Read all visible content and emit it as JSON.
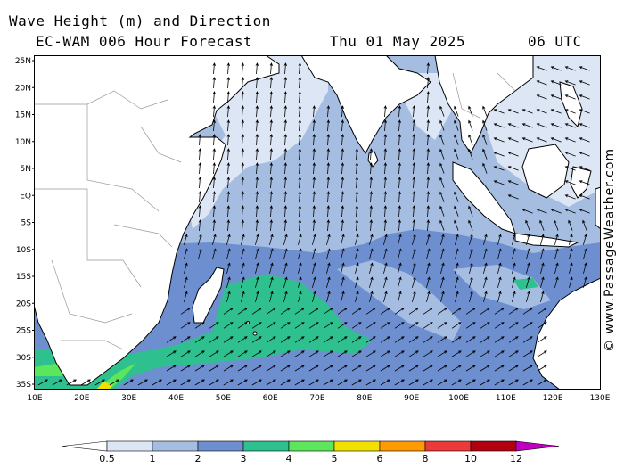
{
  "header": {
    "title": "Wave Height (m) and Direction",
    "model": "EC-WAM 006 Hour Forecast",
    "date": "Thu 01 May 2025",
    "time": "06 UTC"
  },
  "credit": "© www.PassageWeather.com",
  "axes": {
    "lat_labels": [
      "25N",
      "20N",
      "15N",
      "10N",
      "5N",
      "EQ",
      "5S",
      "10S",
      "15S",
      "20S",
      "25S",
      "30S",
      "35S"
    ],
    "lon_labels": [
      "10E",
      "20E",
      "30E",
      "40E",
      "50E",
      "60E",
      "70E",
      "80E",
      "90E",
      "100E",
      "110E",
      "120E",
      "130E"
    ]
  },
  "legend": {
    "colors": [
      "#dce6f5",
      "#a6bde2",
      "#6e8fcf",
      "#2ec08f",
      "#5ce65c",
      "#f2e000",
      "#ff9a00",
      "#ec3a3a",
      "#b30010",
      "#c000c0"
    ],
    "labels": [
      "0.5",
      "1",
      "2",
      "3",
      "4",
      "5",
      "6",
      "8",
      "10",
      "12"
    ]
  },
  "palette": {
    "land": "#ffffff",
    "coast": "#000000",
    "border": "#999999"
  }
}
